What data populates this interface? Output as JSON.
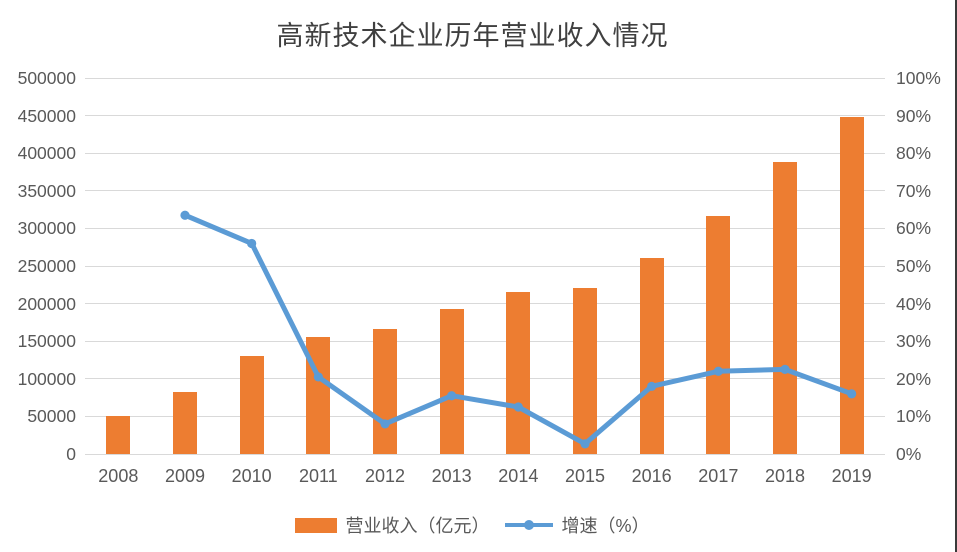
{
  "title": "高新技术企业历年营业收入情况",
  "chart_data": {
    "type": "combo (bar + line, dual axis)",
    "categories": [
      "2008",
      "2009",
      "2010",
      "2011",
      "2012",
      "2013",
      "2014",
      "2015",
      "2016",
      "2017",
      "2018",
      "2019"
    ],
    "series": [
      {
        "name": "营业收入（亿元）",
        "type": "bar",
        "axis": "left",
        "color": "#ED7D31",
        "values": [
          51000,
          83000,
          130000,
          156000,
          166000,
          193000,
          216000,
          221000,
          260000,
          317000,
          388000,
          448000
        ]
      },
      {
        "name": "增速（%）",
        "type": "line",
        "axis": "right",
        "color": "#5B9BD5",
        "values": [
          null,
          63.5,
          56,
          20.5,
          8,
          15.5,
          12.5,
          2.7,
          18,
          22,
          22.5,
          16
        ]
      }
    ],
    "left_axis": {
      "min": 0,
      "max": 500000,
      "step": 50000,
      "tick_labels": [
        "0",
        "50000",
        "100000",
        "150000",
        "200000",
        "250000",
        "300000",
        "350000",
        "400000",
        "450000",
        "500000"
      ]
    },
    "right_axis": {
      "min": 0,
      "max": 100,
      "step": 10,
      "tick_labels": [
        "0%",
        "10%",
        "20%",
        "30%",
        "40%",
        "50%",
        "60%",
        "70%",
        "80%",
        "90%",
        "100%"
      ]
    },
    "grid": "horizontal gridlines on",
    "gridline_color": "#D9D9D9",
    "axis_label_color": "#595959",
    "title_color": "#404040",
    "legend_position": "bottom"
  }
}
